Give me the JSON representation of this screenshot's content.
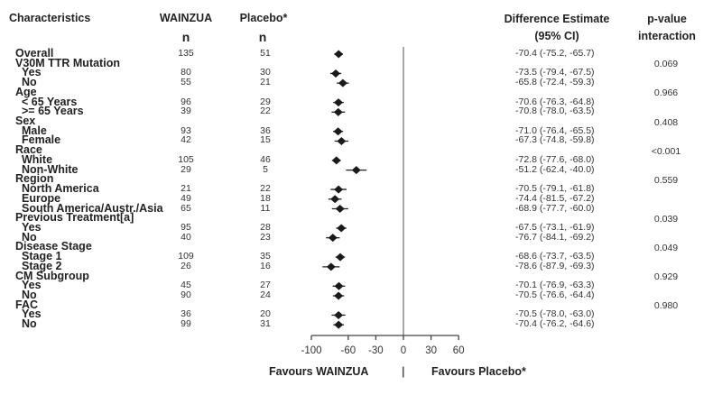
{
  "headers": {
    "characteristics": "Characteristics",
    "wainzua": "WAINZUA",
    "placebo": "Placebo*",
    "n_wainzua": "n",
    "n_placebo": "n",
    "difference": "Difference Estimate",
    "ci": "(95% CI)",
    "pvalue": "p-value",
    "interaction": "interaction"
  },
  "chart_data": {
    "type": "forest",
    "xlim": [
      -100,
      60
    ],
    "xticks": [
      "-100",
      "-60",
      "-30",
      "0",
      "30",
      "60"
    ],
    "xtick_values": [
      -100,
      -60,
      -30,
      0,
      30,
      60
    ],
    "reference_line": 0,
    "left_label": "Favours WAINZUA",
    "separator": "|",
    "right_label": "Favours Placebo*",
    "rows": [
      {
        "label": "Overall",
        "level": 0,
        "n_w": "135",
        "n_p": "51",
        "est": -70.4,
        "lo": -75.2,
        "hi": -65.7,
        "text": "-70.4 (-75.2, -65.7)"
      },
      {
        "label": "V30M TTR Mutation",
        "level": 0
      },
      {
        "label": "Yes",
        "level": 1,
        "n_w": "80",
        "n_p": "30",
        "est": -73.5,
        "lo": -79.4,
        "hi": -67.5,
        "text": "-73.5 (-79.4, -67.5)"
      },
      {
        "label": "No",
        "level": 1,
        "n_w": "55",
        "n_p": "21",
        "est": -65.8,
        "lo": -72.4,
        "hi": -59.3,
        "text": "-65.8 (-72.4, -59.3)"
      },
      {
        "label": "Age",
        "level": 0
      },
      {
        "label": "< 65 Years",
        "level": 1,
        "n_w": "96",
        "n_p": "29",
        "est": -70.6,
        "lo": -76.3,
        "hi": -64.8,
        "text": "-70.6 (-76.3, -64.8)"
      },
      {
        "label": ">= 65 Years",
        "level": 1,
        "n_w": "39",
        "n_p": "22",
        "est": -70.8,
        "lo": -78.0,
        "hi": -63.5,
        "text": "-70.8 (-78.0, -63.5)"
      },
      {
        "label": "Sex",
        "level": 0
      },
      {
        "label": "Male",
        "level": 1,
        "n_w": "93",
        "n_p": "36",
        "est": -71.0,
        "lo": -76.4,
        "hi": -65.5,
        "text": "-71.0 (-76.4, -65.5)"
      },
      {
        "label": "Female",
        "level": 1,
        "n_w": "42",
        "n_p": "15",
        "est": -67.3,
        "lo": -74.8,
        "hi": -59.8,
        "text": "-67.3 (-74.8, -59.8)"
      },
      {
        "label": "Race",
        "level": 0
      },
      {
        "label": "White",
        "level": 1,
        "n_w": "105",
        "n_p": "46",
        "est": -72.8,
        "lo": -77.6,
        "hi": -68.0,
        "text": "-72.8 (-77.6, -68.0)"
      },
      {
        "label": "Non-White",
        "level": 1,
        "n_w": "29",
        "n_p": "5",
        "est": -51.2,
        "lo": -62.4,
        "hi": -40.0,
        "text": "-51.2 (-62.4, -40.0)"
      },
      {
        "label": "Region",
        "level": 0
      },
      {
        "label": "North America",
        "level": 1,
        "n_w": "21",
        "n_p": "22",
        "est": -70.5,
        "lo": -79.1,
        "hi": -61.8,
        "text": "-70.5 (-79.1, -61.8)"
      },
      {
        "label": "Europe",
        "level": 1,
        "n_w": "49",
        "n_p": "18",
        "est": -74.4,
        "lo": -81.5,
        "hi": -67.2,
        "text": "-74.4 (-81.5, -67.2)"
      },
      {
        "label": "South America/Austr./Asia",
        "level": 1,
        "n_w": "65",
        "n_p": "11",
        "est": -68.9,
        "lo": -77.7,
        "hi": -60.0,
        "text": "-68.9 (-77.7, -60.0)"
      },
      {
        "label": "Previous Treatment[a]",
        "level": 0
      },
      {
        "label": "Yes",
        "level": 1,
        "n_w": "95",
        "n_p": "28",
        "est": -67.5,
        "lo": -73.1,
        "hi": -61.9,
        "text": "-67.5 (-73.1, -61.9)"
      },
      {
        "label": "No",
        "level": 1,
        "n_w": "40",
        "n_p": "23",
        "est": -76.7,
        "lo": -84.1,
        "hi": -69.2,
        "text": "-76.7 (-84.1, -69.2)"
      },
      {
        "label": "Disease Stage",
        "level": 0
      },
      {
        "label": "Stage 1",
        "level": 1,
        "n_w": "109",
        "n_p": "35",
        "est": -68.6,
        "lo": -73.7,
        "hi": -63.5,
        "text": "-68.6 (-73.7, -63.5)"
      },
      {
        "label": "Stage 2",
        "level": 1,
        "n_w": "26",
        "n_p": "16",
        "est": -78.6,
        "lo": -87.9,
        "hi": -69.3,
        "text": "-78.6 (-87.9, -69.3)"
      },
      {
        "label": "CM Subgroup",
        "level": 0
      },
      {
        "label": "Yes",
        "level": 1,
        "n_w": "45",
        "n_p": "27",
        "est": -70.1,
        "lo": -76.9,
        "hi": -63.3,
        "text": "-70.1 (-76.9, -63.3)"
      },
      {
        "label": "No",
        "level": 1,
        "n_w": "90",
        "n_p": "24",
        "est": -70.5,
        "lo": -76.6,
        "hi": -64.4,
        "text": "-70.5 (-76.6, -64.4)"
      },
      {
        "label": "FAC",
        "level": 0
      },
      {
        "label": "Yes",
        "level": 1,
        "n_w": "36",
        "n_p": "20",
        "est": -70.5,
        "lo": -78.0,
        "hi": -63.0,
        "text": "-70.5 (-78.0, -63.0)"
      },
      {
        "label": "No",
        "level": 1,
        "n_w": "99",
        "n_p": "31",
        "est": -70.4,
        "lo": -76.2,
        "hi": -64.6,
        "text": "-70.4 (-76.2, -64.6)"
      }
    ],
    "p_interaction": [
      {
        "group": "V30M TTR Mutation",
        "value": "0.069"
      },
      {
        "group": "Age",
        "value": "0.966"
      },
      {
        "group": "Sex",
        "value": "0.408"
      },
      {
        "group": "Race",
        "value": "<0.001"
      },
      {
        "group": "Region",
        "value": "0.559"
      },
      {
        "group": "Previous Treatment[a]",
        "value": "0.039"
      },
      {
        "group": "Disease Stage",
        "value": "0.049"
      },
      {
        "group": "CM Subgroup",
        "value": "0.929"
      },
      {
        "group": "FAC",
        "value": "0.980"
      }
    ]
  }
}
